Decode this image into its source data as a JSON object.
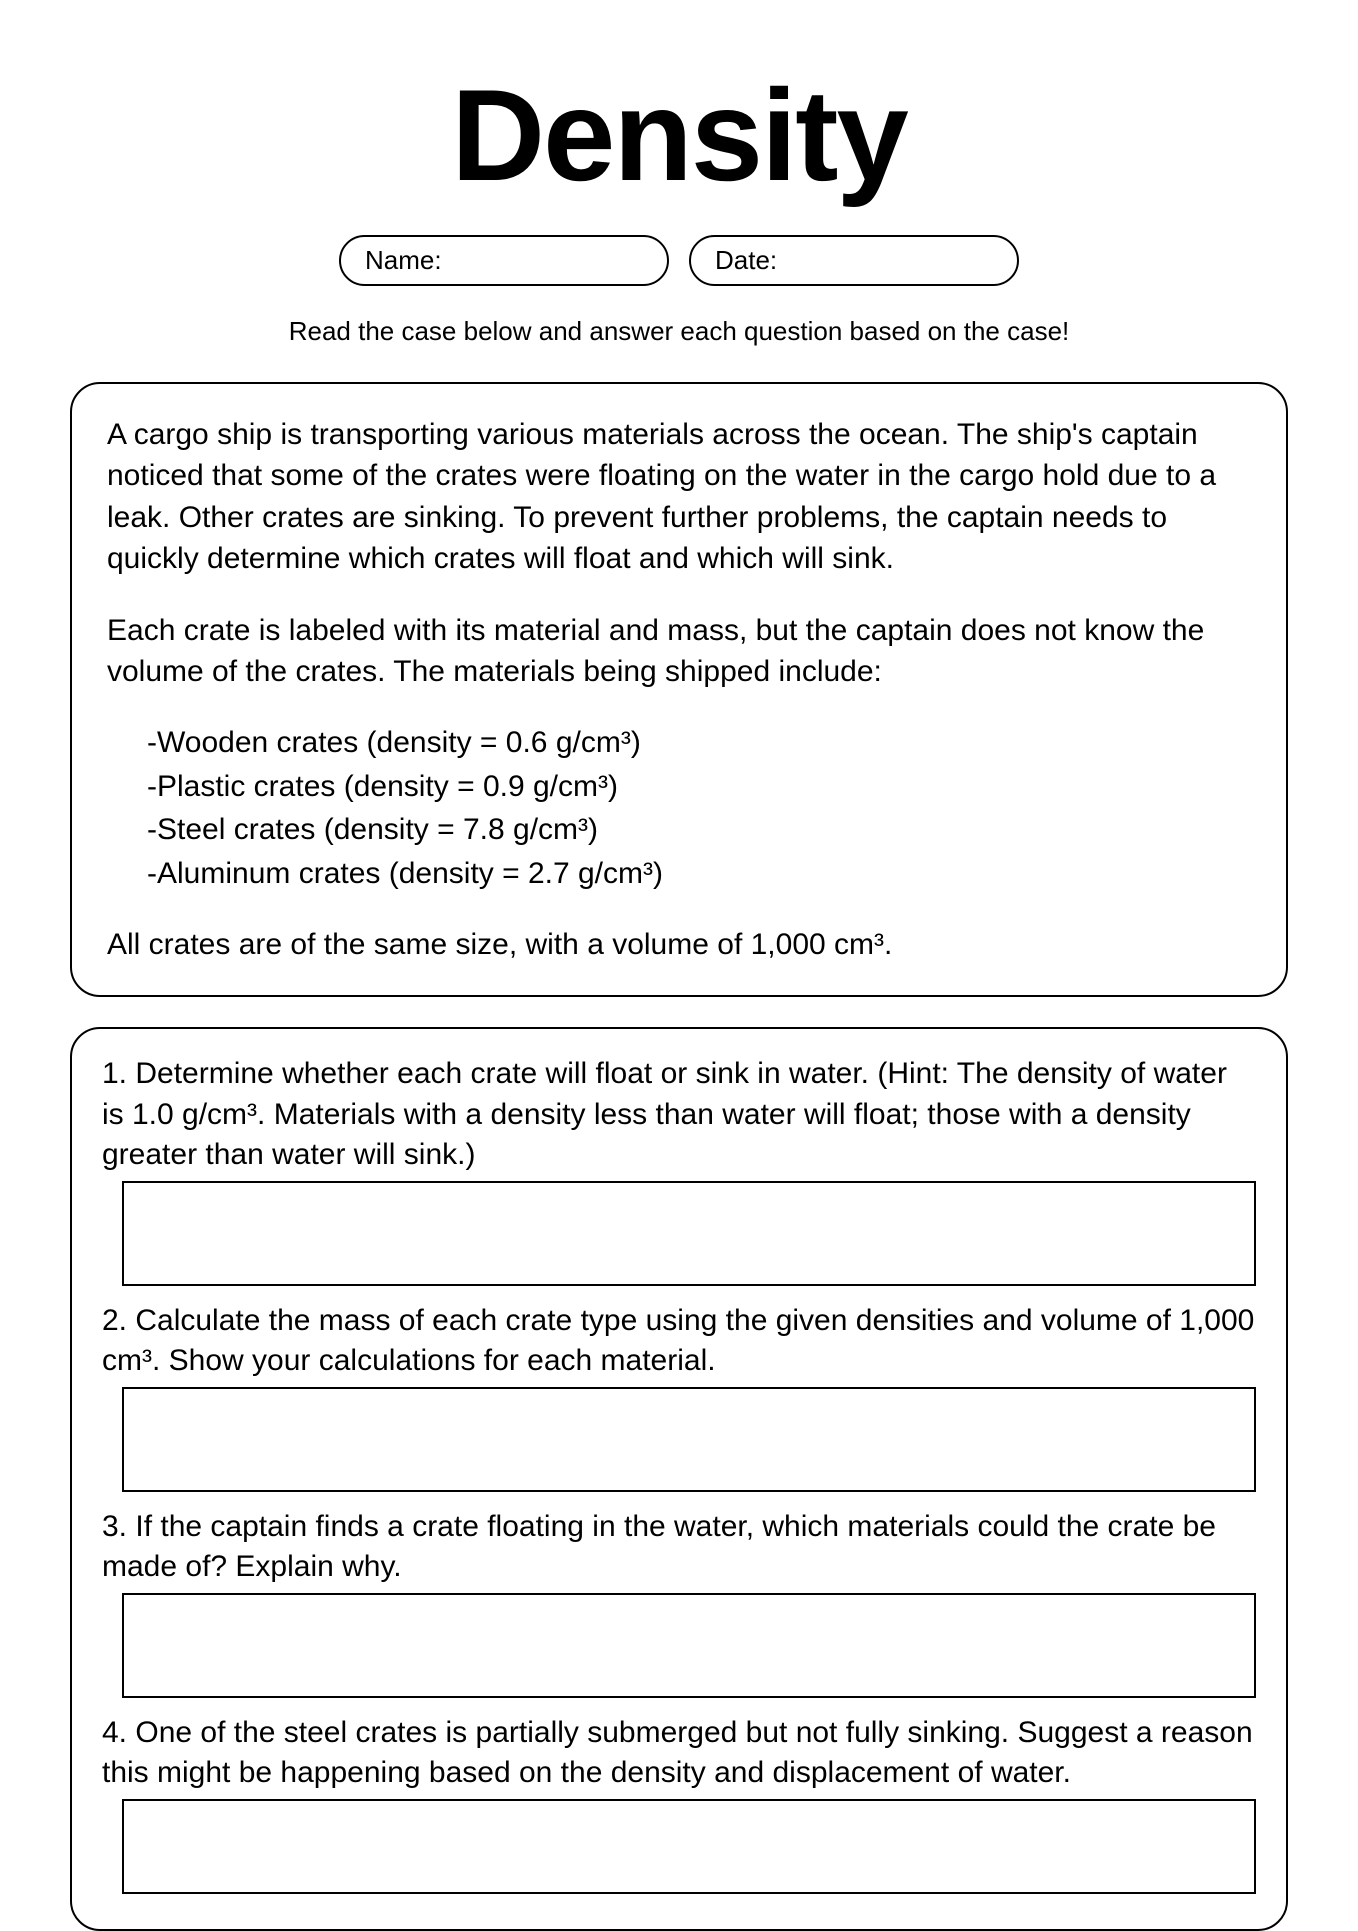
{
  "title": "Density",
  "name_label": "Name:",
  "date_label": "Date:",
  "instructions": "Read the case below and answer each question based on the case!",
  "case": {
    "p1": "A cargo ship is transporting various materials across the ocean. The ship's captain noticed that some of the crates were floating on the water in the cargo hold due to a leak. Other crates are sinking. To prevent further problems, the captain needs to quickly determine which crates will float and which will sink.",
    "p2": "Each crate is labeled with its material and mass, but the captain does not know the volume of the crates. The materials being shipped include:",
    "materials": [
      "-Wooden crates (density = 0.6 g/cm³)",
      "-Plastic crates (density = 0.9 g/cm³)",
      "-Steel crates (density = 7.8 g/cm³)",
      "-Aluminum crates (density = 2.7 g/cm³)"
    ],
    "p3": "All crates are of the same size, with a volume of 1,000 cm³."
  },
  "questions": [
    "1. Determine whether each crate will float or sink in water. (Hint: The density of water is 1.0 g/cm³. Materials with a density less than water will float; those with a density greater than water will sink.)",
    "2. Calculate the mass of each crate type using the given densities and volume of 1,000 cm³. Show your calculations for each material.",
    "3. If the captain finds a crate floating in the water, which materials could the crate be made of? Explain why.",
    "4. One of the steel crates is partially submerged but not fully sinking. Suggest a reason this might be happening based on the density and displacement of water."
  ]
}
